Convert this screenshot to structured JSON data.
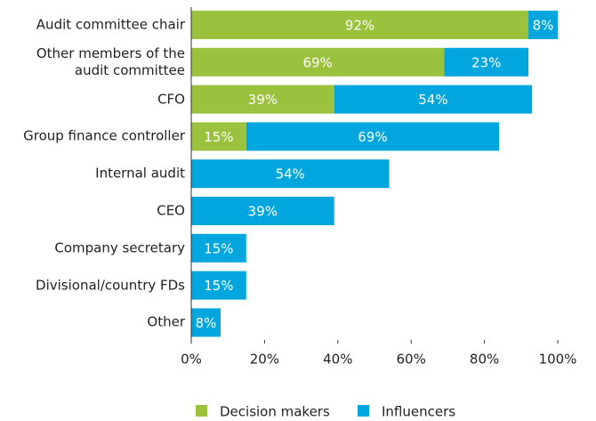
{
  "chart_data": {
    "type": "bar",
    "orientation": "horizontal",
    "stacked": true,
    "categories": [
      "Audit committee chair",
      "Other members of the audit committee",
      "CFO",
      "Group finance controller",
      "Internal audit",
      "CEO",
      "Company secretary",
      "Divisional/country FDs",
      "Other"
    ],
    "series": [
      {
        "name": "Decision makers",
        "color": "#9bc23c",
        "values": [
          92,
          69,
          39,
          15,
          null,
          null,
          null,
          null,
          null
        ],
        "value_labels": [
          "92%",
          "69%",
          "39%",
          "15%",
          null,
          null,
          null,
          null,
          null
        ]
      },
      {
        "name": "Influencers",
        "color": "#00a6dd",
        "values": [
          8,
          23,
          54,
          69,
          54,
          39,
          15,
          15,
          8
        ],
        "value_labels": [
          "8%",
          "23%",
          "54%",
          "69%",
          "54%",
          "39%",
          "15%",
          "15%",
          "8%"
        ]
      }
    ],
    "xlim": [
      0,
      100
    ],
    "xticks": [
      {
        "value": 0,
        "label": "0%"
      },
      {
        "value": 20,
        "label": "20%"
      },
      {
        "value": 40,
        "label": "40%"
      },
      {
        "value": 60,
        "label": "60%"
      },
      {
        "value": 80,
        "label": "80%"
      },
      {
        "value": 100,
        "label": "100%"
      }
    ],
    "legend": "bottom"
  }
}
